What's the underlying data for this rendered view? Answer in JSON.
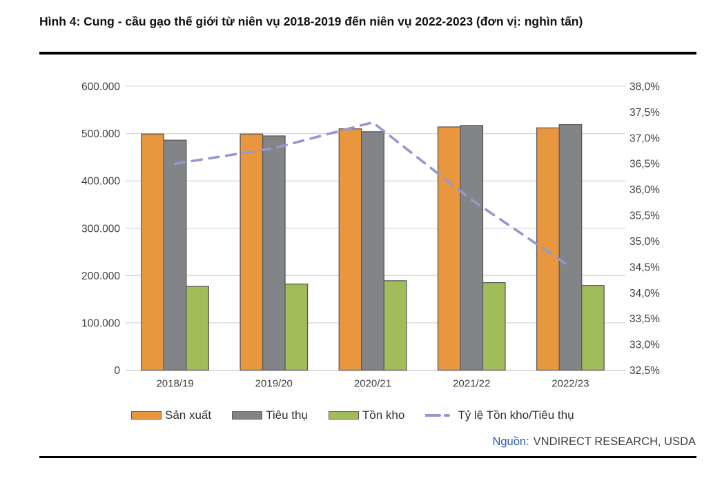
{
  "title": "Hình 4: Cung - cầu gạo thế giới từ niên vụ 2018-2019 đến niên vụ 2022-2023 (đơn vị: nghìn tấn)",
  "source": {
    "label": "Nguồn:",
    "value": "VNDIRECT RESEARCH, USDA"
  },
  "chart_data": {
    "type": "bar",
    "subtype": "grouped-bars-with-line-on-secondary-axis",
    "categories": [
      "2018/19",
      "2019/20",
      "2020/21",
      "2021/22",
      "2022/23"
    ],
    "series": [
      {
        "name": "Sản xuất",
        "type": "bar",
        "color": "#E9973F",
        "values": [
          499000,
          499000,
          510000,
          514000,
          512000
        ]
      },
      {
        "name": "Tiêu thụ",
        "type": "bar",
        "color": "#828487",
        "values": [
          486000,
          495000,
          504000,
          517000,
          519000
        ]
      },
      {
        "name": "Tồn kho",
        "type": "bar",
        "color": "#A0BD59",
        "values": [
          177000,
          182000,
          189000,
          185000,
          179000
        ]
      }
    ],
    "line_series": {
      "name": "Tỷ lệ Tồn kho/Tiêu thụ",
      "type": "line",
      "style": "dashed",
      "color": "#9498CD",
      "axis": "right",
      "values_pct": [
        36.5,
        36.8,
        37.3,
        35.8,
        34.5
      ]
    },
    "left_axis": {
      "min": 0,
      "max": 600000,
      "step": 100000,
      "tick_labels": [
        "0",
        "100.000",
        "200.000",
        "300.000",
        "400.000",
        "500.000",
        "600.000"
      ]
    },
    "right_axis": {
      "min": 32.5,
      "max": 38.0,
      "step": 0.5,
      "unit": "%",
      "tick_labels": [
        "32,5%",
        "33,0%",
        "33,5%",
        "34,0%",
        "34,5%",
        "35,0%",
        "35,5%",
        "36,0%",
        "36,5%",
        "37,0%",
        "37,5%",
        "38,0%"
      ]
    },
    "grid": true,
    "legend_position": "bottom",
    "bar_border_color": "#595959",
    "axis_text_color": "#3F3F3F",
    "gridline_color": "#D9D9D9"
  }
}
